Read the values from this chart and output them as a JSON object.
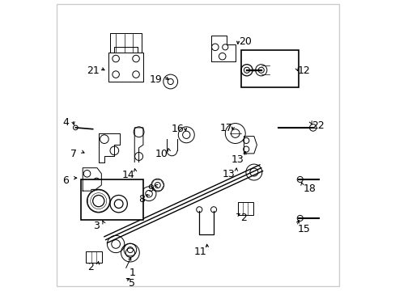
{
  "bg_color": "#ffffff",
  "line_color": "#000000",
  "label_fontsize": 9
}
